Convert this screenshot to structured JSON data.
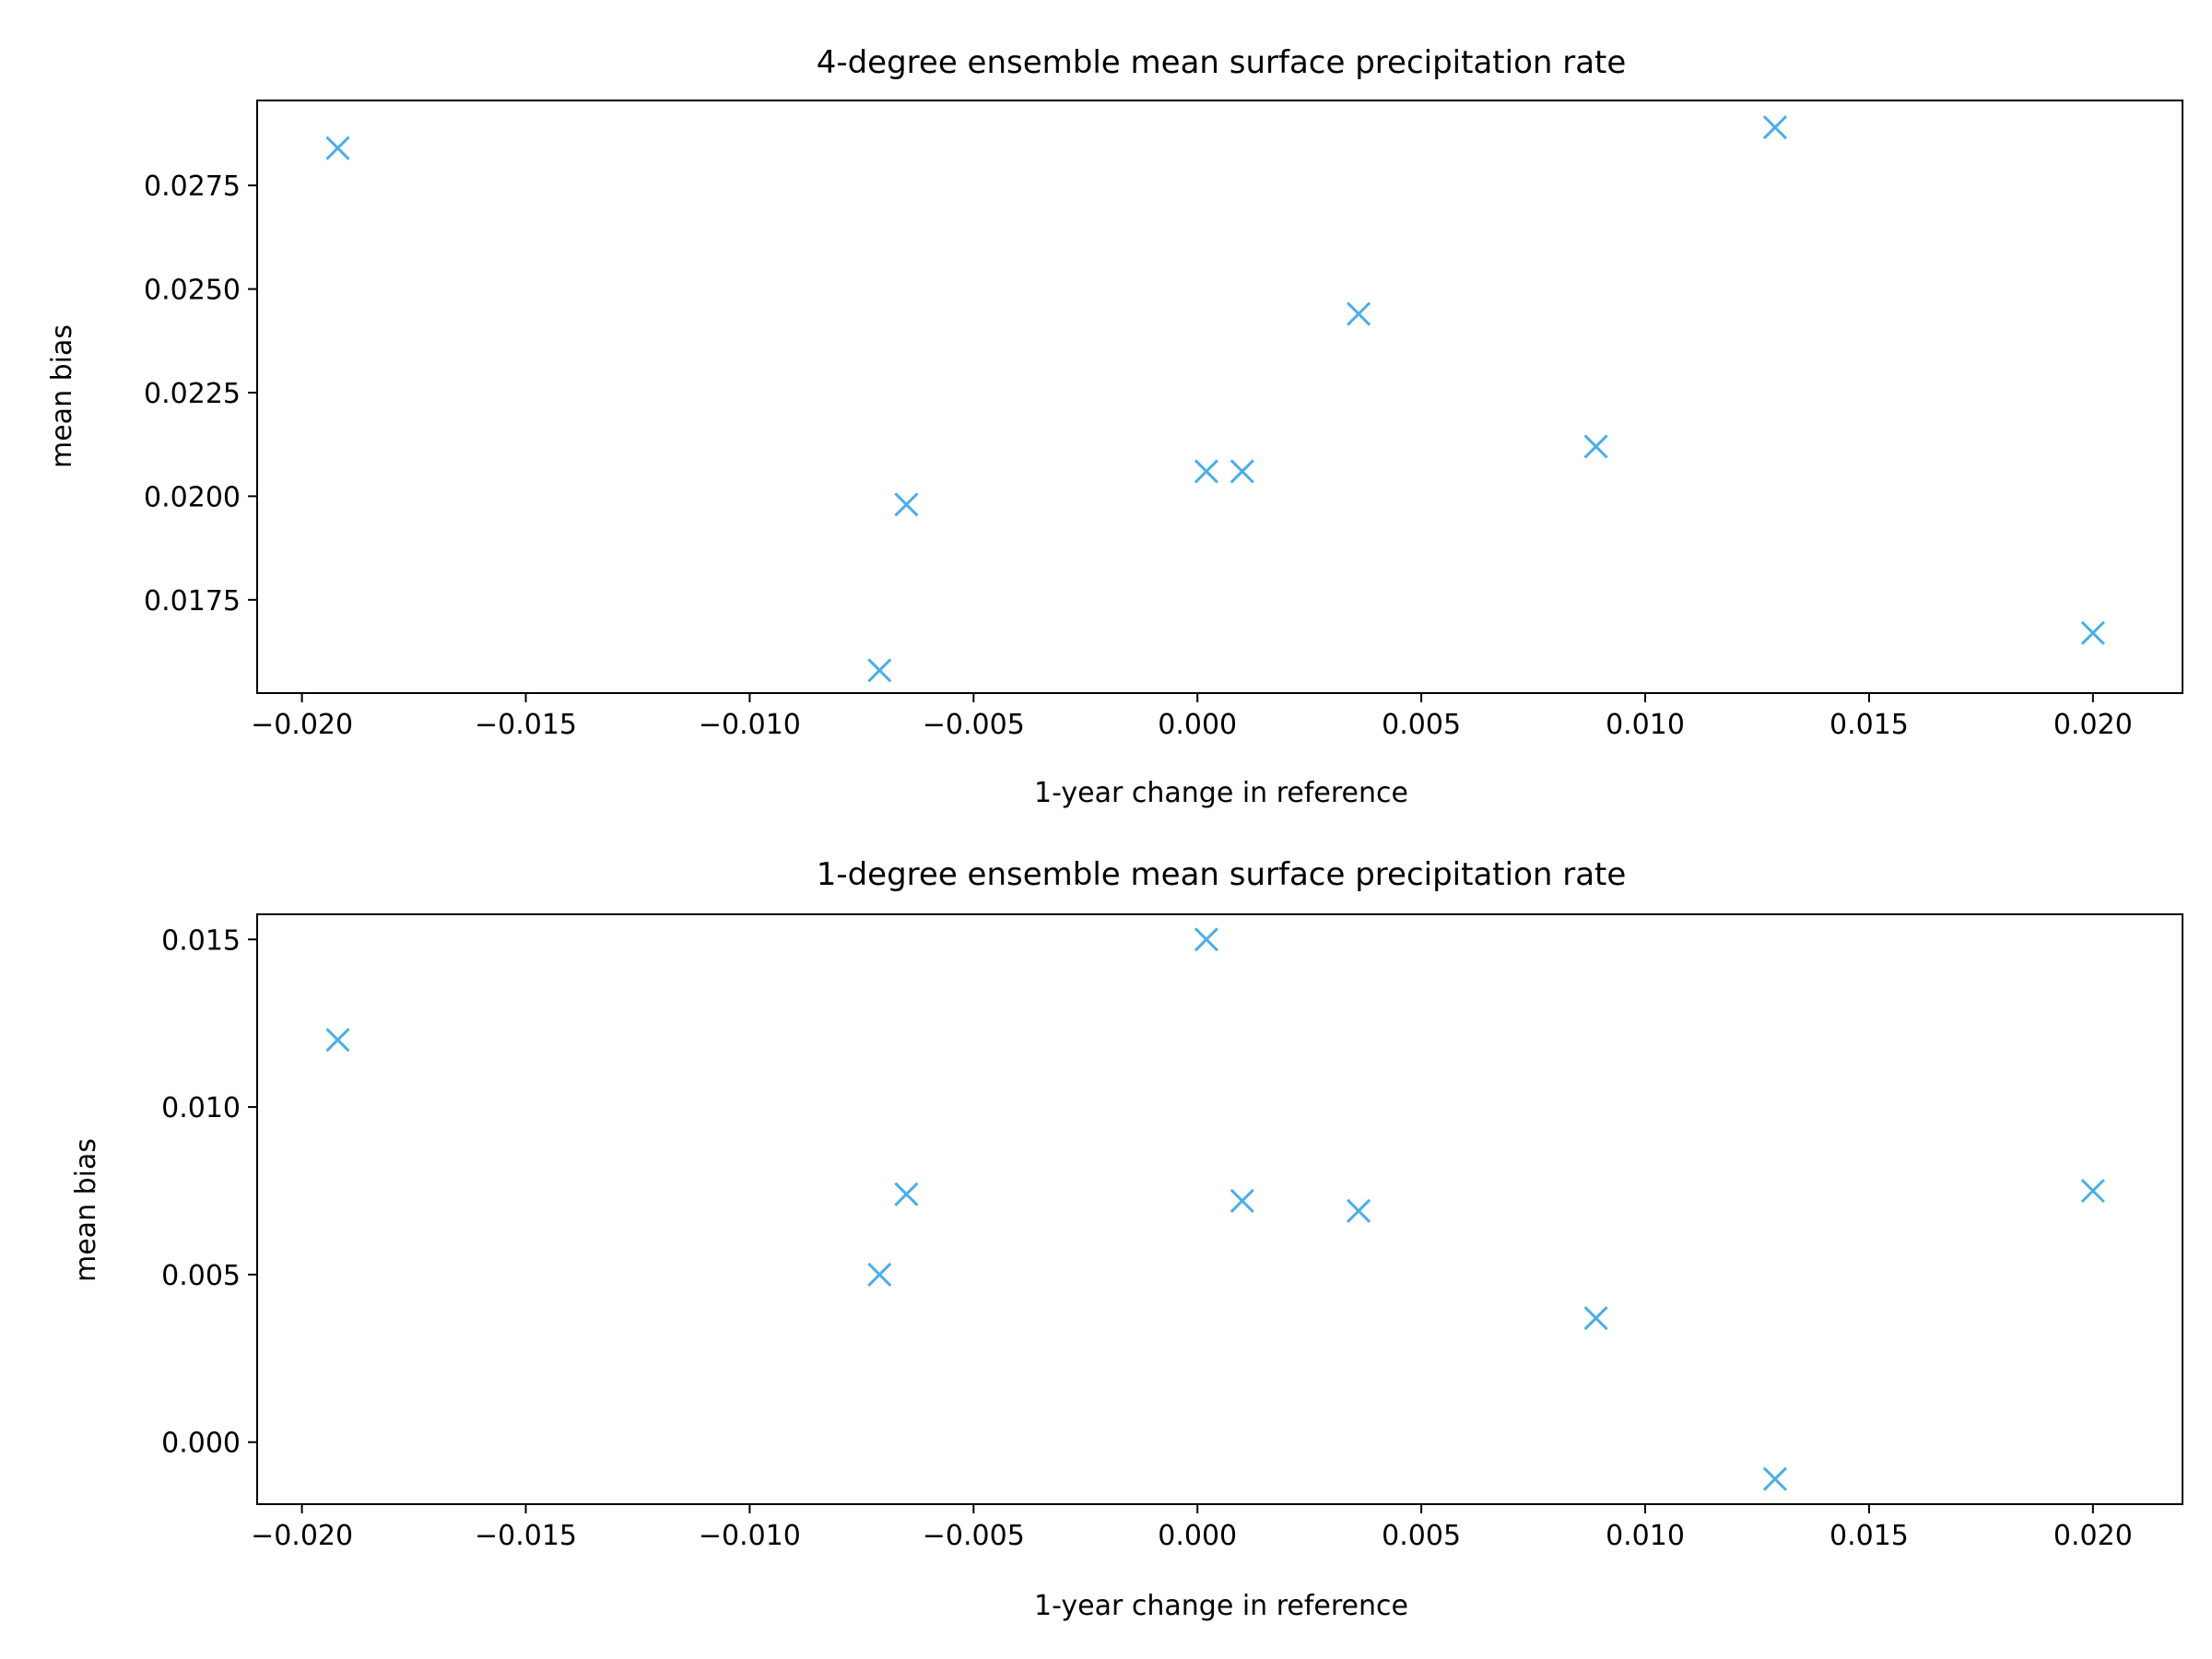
{
  "chart_data": [
    {
      "type": "scatter",
      "title": "4-degree ensemble mean surface precipitation rate",
      "xlabel": "1-year change in reference",
      "ylabel": "mean bias",
      "xlim": [
        -0.021,
        0.022
      ],
      "ylim": [
        0.01525,
        0.02955
      ],
      "xticks": [
        "−0.020",
        "−0.015",
        "−0.010",
        "−0.005",
        "0.000",
        "0.005",
        "0.010",
        "0.015",
        "0.020"
      ],
      "xtick_values": [
        -0.02,
        -0.015,
        -0.01,
        -0.005,
        0.0,
        0.005,
        0.01,
        0.015,
        0.02
      ],
      "yticks": [
        "0.0175",
        "0.0200",
        "0.0225",
        "0.0250",
        "0.0275"
      ],
      "ytick_values": [
        0.0175,
        0.02,
        0.0225,
        0.025,
        0.0275
      ],
      "marker": "x",
      "color": "#4aaee6",
      "grid": false,
      "series": [
        {
          "x": [
            -0.0192,
            -0.0071,
            -0.0065,
            0.0002,
            0.001,
            0.0036,
            0.0089,
            0.0129,
            0.02
          ],
          "y": [
            0.0284,
            0.0158,
            0.0198,
            0.0206,
            0.0206,
            0.0244,
            0.0212,
            0.0289,
            0.0167
          ]
        }
      ]
    },
    {
      "type": "scatter",
      "title": "1-degree ensemble mean surface precipitation rate",
      "xlabel": "1-year change in reference",
      "ylabel": "mean bias",
      "xlim": [
        -0.021,
        0.022
      ],
      "ylim": [
        -0.00185,
        0.01575
      ],
      "xticks": [
        "−0.020",
        "−0.015",
        "−0.010",
        "−0.005",
        "0.000",
        "0.005",
        "0.010",
        "0.015",
        "0.020"
      ],
      "xtick_values": [
        -0.02,
        -0.015,
        -0.01,
        -0.005,
        0.0,
        0.005,
        0.01,
        0.015,
        0.02
      ],
      "yticks": [
        "0.000",
        "0.005",
        "0.010",
        "0.015"
      ],
      "ytick_values": [
        0.0,
        0.005,
        0.01,
        0.015
      ],
      "marker": "x",
      "color": "#4aaee6",
      "grid": false,
      "series": [
        {
          "x": [
            -0.0192,
            -0.0071,
            -0.0065,
            0.0002,
            0.001,
            0.0036,
            0.0089,
            0.0129,
            0.02
          ],
          "y": [
            0.012,
            0.005,
            0.0074,
            0.015,
            0.0072,
            0.0069,
            0.0037,
            -0.0011,
            0.0075
          ]
        }
      ]
    }
  ]
}
